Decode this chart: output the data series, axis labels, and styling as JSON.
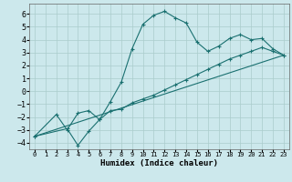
{
  "xlabel": "Humidex (Indice chaleur)",
  "bg_color": "#cce8ec",
  "grid_color": "#aacccc",
  "line_color": "#1a7070",
  "xlim": [
    -0.5,
    23.5
  ],
  "ylim": [
    -4.5,
    6.8
  ],
  "yticks": [
    -4,
    -3,
    -2,
    -1,
    0,
    1,
    2,
    3,
    4,
    5,
    6
  ],
  "xticks": [
    0,
    1,
    2,
    3,
    4,
    5,
    6,
    7,
    8,
    9,
    10,
    11,
    12,
    13,
    14,
    15,
    16,
    17,
    18,
    19,
    20,
    21,
    22,
    23
  ],
  "curve1_x": [
    0,
    2,
    3,
    4,
    5,
    6,
    7,
    8,
    9,
    10,
    11,
    12,
    13,
    14,
    15,
    16,
    17,
    18,
    19,
    20,
    21,
    22,
    23
  ],
  "curve1_y": [
    -3.5,
    -1.8,
    -3.0,
    -1.7,
    -1.5,
    -2.2,
    -0.8,
    0.7,
    3.3,
    5.2,
    5.9,
    6.2,
    5.7,
    5.3,
    3.8,
    3.1,
    3.5,
    4.1,
    4.4,
    4.0,
    4.1,
    3.3,
    2.8
  ],
  "curve2_x": [
    0,
    3,
    4,
    5,
    6,
    7,
    8,
    9,
    10,
    11,
    12,
    13,
    14,
    15,
    16,
    17,
    18,
    19,
    20,
    21,
    22,
    23
  ],
  "curve2_y": [
    -3.5,
    -2.9,
    -4.2,
    -3.1,
    -2.2,
    -1.5,
    -1.4,
    -0.9,
    -0.6,
    -0.3,
    0.1,
    0.5,
    0.9,
    1.3,
    1.7,
    2.1,
    2.5,
    2.8,
    3.1,
    3.4,
    3.1,
    2.8
  ],
  "curve3_x": [
    0,
    23
  ],
  "curve3_y": [
    -3.5,
    2.8
  ]
}
